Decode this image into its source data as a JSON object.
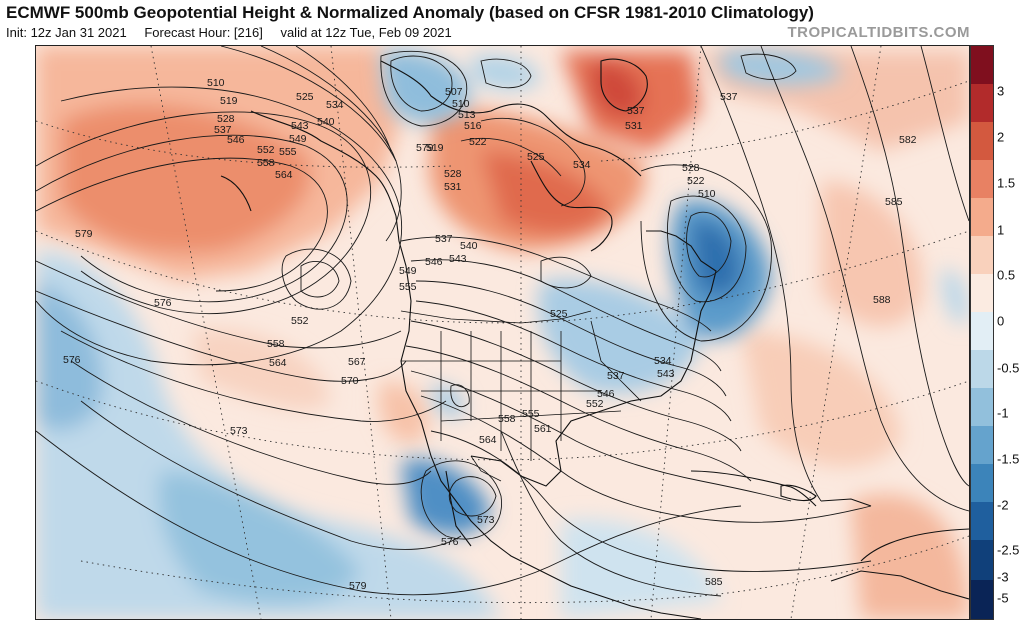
{
  "header": {
    "title": "ECMWF 500mb Geopotential Height & Normalized Anomaly (based on CFSR 1981-2010 Climatology)",
    "init": "Init: 12z Jan 31 2021",
    "forecast_hour": "Forecast Hour: [216]",
    "valid": "valid at 12z Tue, Feb 09 2021",
    "site": "TROPICALTIDBITS.COM"
  },
  "colorbar": {
    "ticks": [
      "3",
      "2",
      "1.5",
      "1",
      "0.5",
      "0",
      "-0.5",
      "-1",
      "-1.5",
      "-2",
      "-2.5",
      "-3",
      "-5"
    ],
    "colors": [
      "#7f0f1e",
      "#b22b2b",
      "#d3593f",
      "#e88163",
      "#f4ab8c",
      "#f9d1bc",
      "#fbebe1",
      "#e2eef5",
      "#bcd8e8",
      "#92c0dc",
      "#65a3cd",
      "#3c84ba",
      "#1f5f9e",
      "#10407a",
      "#0a2456"
    ]
  },
  "contour_labels": [
    "510",
    "519",
    "528",
    "537",
    "546",
    "552",
    "558",
    "564",
    "525",
    "534",
    "543",
    "549",
    "555",
    "540",
    "507",
    "516",
    "513",
    "522",
    "531",
    "570",
    "573",
    "576",
    "579",
    "582",
    "585",
    "588",
    "561",
    "567"
  ],
  "map_labels": [
    {
      "id": "l510a",
      "text": "510"
    },
    {
      "id": "l519",
      "text": "519"
    },
    {
      "id": "l528a",
      "text": "528"
    },
    {
      "id": "l537a",
      "text": "537"
    },
    {
      "id": "l546a",
      "text": "546"
    },
    {
      "id": "l552a",
      "text": "552"
    },
    {
      "id": "l558a",
      "text": "558"
    },
    {
      "id": "l564a",
      "text": "564"
    },
    {
      "id": "l525a",
      "text": "525"
    },
    {
      "id": "l534a",
      "text": "534"
    },
    {
      "id": "l540a",
      "text": "540"
    },
    {
      "id": "l543a",
      "text": "543"
    },
    {
      "id": "l549a",
      "text": "549"
    },
    {
      "id": "l555a",
      "text": "555"
    },
    {
      "id": "l507",
      "text": "507"
    },
    {
      "id": "l510b",
      "text": "510"
    },
    {
      "id": "l513",
      "text": "513"
    },
    {
      "id": "l516",
      "text": "516"
    },
    {
      "id": "l522a",
      "text": "522"
    },
    {
      "id": "l519b",
      "text": "519"
    },
    {
      "id": "l528b",
      "text": "528"
    },
    {
      "id": "l531a",
      "text": "531"
    },
    {
      "id": "l525b",
      "text": "525"
    },
    {
      "id": "l534b",
      "text": "534"
    },
    {
      "id": "l537b",
      "text": "537"
    },
    {
      "id": "l531b",
      "text": "531"
    },
    {
      "id": "l537c",
      "text": "537"
    },
    {
      "id": "l528c",
      "text": "528"
    },
    {
      "id": "l522b",
      "text": "522"
    },
    {
      "id": "l510c",
      "text": "510"
    },
    {
      "id": "l537d",
      "text": "537"
    },
    {
      "id": "l540b",
      "text": "540"
    },
    {
      "id": "l543b",
      "text": "543"
    },
    {
      "id": "l546b",
      "text": "546"
    },
    {
      "id": "l549b",
      "text": "549"
    },
    {
      "id": "l555b",
      "text": "555"
    },
    {
      "id": "l552b",
      "text": "552"
    },
    {
      "id": "l558b",
      "text": "558"
    },
    {
      "id": "l564b",
      "text": "564"
    },
    {
      "id": "l567",
      "text": "567"
    },
    {
      "id": "l570",
      "text": "570"
    },
    {
      "id": "l573a",
      "text": "573"
    },
    {
      "id": "l576a",
      "text": "576"
    },
    {
      "id": "l579a",
      "text": "579"
    },
    {
      "id": "l576b",
      "text": "576"
    },
    {
      "id": "l582",
      "text": "582"
    },
    {
      "id": "l585a",
      "text": "585"
    },
    {
      "id": "l588",
      "text": "588"
    },
    {
      "id": "l525c",
      "text": "525"
    },
    {
      "id": "l534c",
      "text": "534"
    },
    {
      "id": "l537e",
      "text": "537"
    },
    {
      "id": "l543c",
      "text": "543"
    },
    {
      "id": "l546c",
      "text": "546"
    },
    {
      "id": "l552c",
      "text": "552"
    },
    {
      "id": "l558c",
      "text": "558"
    },
    {
      "id": "l555c",
      "text": "555"
    },
    {
      "id": "l561",
      "text": "561"
    },
    {
      "id": "l564c",
      "text": "564"
    },
    {
      "id": "l573b",
      "text": "573"
    },
    {
      "id": "l576c",
      "text": "576"
    },
    {
      "id": "l579b",
      "text": "579"
    },
    {
      "id": "l585b",
      "text": "585"
    },
    {
      "id": "l579c",
      "text": "579"
    }
  ]
}
